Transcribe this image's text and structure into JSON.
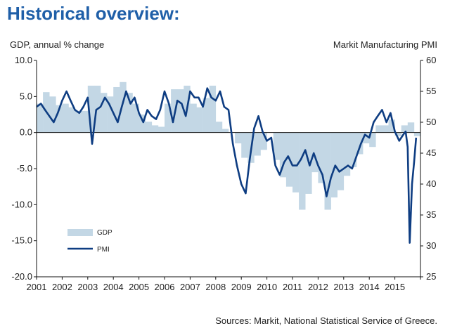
{
  "title": "Historical overview:",
  "source": "Sources: Markit, National Statistical Service of Greece.",
  "chart_data": {
    "type": "area+line",
    "ylabel_left": "GDP, annual % change",
    "ylabel_right": "Markit Manufacturing PMI",
    "ylim_left": [
      -20,
      10
    ],
    "ylim_right": [
      25,
      60
    ],
    "yticks_left": [
      "10.0",
      "5.0",
      "0.0",
      "-5.0",
      "-10.0",
      "-15.0",
      "-20.0"
    ],
    "yticks_right": [
      "60",
      "55",
      "50",
      "45",
      "40",
      "35",
      "30",
      "25"
    ],
    "xlim": [
      2001,
      2016
    ],
    "xticks": [
      "2001",
      "2002",
      "2003",
      "2004",
      "2005",
      "2006",
      "2007",
      "2008",
      "2009",
      "2010",
      "2011",
      "2012",
      "2013",
      "2014",
      "2015"
    ],
    "legend": {
      "position": "lower-left",
      "entries": [
        "GDP",
        "PMI"
      ]
    },
    "colors": {
      "gdp": "#c3d7e5",
      "pmi": "#0e3d82",
      "title": "#1f5fa8"
    },
    "series": [
      {
        "name": "GDP",
        "type": "area",
        "axis": "left",
        "x": [
          2001.0,
          2001.25,
          2001.5,
          2001.75,
          2002.0,
          2002.25,
          2002.5,
          2002.75,
          2003.0,
          2003.25,
          2003.5,
          2003.75,
          2004.0,
          2004.25,
          2004.5,
          2004.75,
          2005.0,
          2005.25,
          2005.5,
          2005.75,
          2006.0,
          2006.25,
          2006.5,
          2006.75,
          2007.0,
          2007.25,
          2007.5,
          2007.75,
          2008.0,
          2008.25,
          2008.5,
          2008.75,
          2009.0,
          2009.25,
          2009.5,
          2009.75,
          2010.0,
          2010.25,
          2010.5,
          2010.75,
          2011.0,
          2011.25,
          2011.5,
          2011.75,
          2012.0,
          2012.25,
          2012.5,
          2012.75,
          2013.0,
          2013.25,
          2013.5,
          2013.75,
          2014.0,
          2014.25,
          2014.5,
          2014.75,
          2015.0,
          2015.25,
          2015.5,
          2015.75
        ],
        "values": [
          4.0,
          5.6,
          5.0,
          3.8,
          4.0,
          3.5,
          3.0,
          3.0,
          6.5,
          6.5,
          5.5,
          5.0,
          6.3,
          7.0,
          5.5,
          4.0,
          2.5,
          1.5,
          1.0,
          0.8,
          4.0,
          6.0,
          6.0,
          6.5,
          4.0,
          3.5,
          4.8,
          6.5,
          1.5,
          0.5,
          0.0,
          -1.5,
          -3.5,
          -4.2,
          -3.2,
          -2.4,
          0.0,
          -3.8,
          -6.2,
          -7.5,
          -8.3,
          -10.7,
          -8.5,
          -5.5,
          -7.0,
          -10.7,
          -9.0,
          -8.0,
          -6.0,
          -4.8,
          -3.0,
          -1.5,
          -2.0,
          1.0,
          1.0,
          1.8,
          -0.5,
          1.0,
          1.4,
          -0.5
        ]
      },
      {
        "name": "PMI",
        "type": "line",
        "axis": "right",
        "x": [
          2001.0,
          2001.17,
          2001.33,
          2001.5,
          2001.67,
          2001.83,
          2002.0,
          2002.17,
          2002.33,
          2002.5,
          2002.67,
          2002.83,
          2003.0,
          2003.17,
          2003.33,
          2003.5,
          2003.67,
          2003.83,
          2004.0,
          2004.17,
          2004.33,
          2004.5,
          2004.67,
          2004.83,
          2005.0,
          2005.17,
          2005.33,
          2005.5,
          2005.67,
          2005.83,
          2006.0,
          2006.17,
          2006.33,
          2006.5,
          2006.67,
          2006.83,
          2007.0,
          2007.17,
          2007.33,
          2007.5,
          2007.67,
          2007.83,
          2008.0,
          2008.17,
          2008.33,
          2008.5,
          2008.67,
          2008.83,
          2009.0,
          2009.17,
          2009.33,
          2009.5,
          2009.67,
          2009.83,
          2010.0,
          2010.17,
          2010.33,
          2010.5,
          2010.67,
          2010.83,
          2011.0,
          2011.17,
          2011.33,
          2011.5,
          2011.67,
          2011.83,
          2012.0,
          2012.17,
          2012.33,
          2012.5,
          2012.67,
          2012.83,
          2013.0,
          2013.17,
          2013.33,
          2013.5,
          2013.67,
          2013.83,
          2014.0,
          2014.17,
          2014.33,
          2014.5,
          2014.67,
          2014.83,
          2015.0,
          2015.17,
          2015.33,
          2015.42,
          2015.5,
          2015.58,
          2015.67,
          2015.75,
          2015.83
        ],
        "values": [
          52.5,
          53.0,
          52.0,
          51.0,
          50.0,
          51.5,
          53.5,
          55.0,
          53.5,
          52.0,
          51.5,
          52.5,
          54.0,
          46.5,
          52.0,
          52.5,
          54.0,
          53.0,
          51.5,
          50.0,
          52.5,
          55.0,
          53.0,
          54.0,
          51.5,
          50.0,
          52.0,
          51.0,
          50.5,
          52.0,
          55.0,
          53.0,
          50.0,
          53.5,
          53.0,
          51.0,
          55.0,
          54.0,
          54.0,
          52.5,
          55.5,
          54.0,
          53.5,
          55.0,
          52.5,
          52.0,
          46.5,
          43.0,
          40.0,
          38.5,
          44.0,
          49.0,
          51.0,
          48.5,
          47.0,
          47.5,
          43.0,
          41.5,
          43.5,
          44.5,
          43.0,
          43.0,
          44.0,
          45.5,
          43.0,
          45.0,
          43.0,
          41.5,
          38.0,
          41.0,
          43.0,
          42.0,
          42.5,
          43.0,
          42.5,
          44.5,
          46.5,
          48.0,
          47.5,
          50.0,
          51.0,
          52.0,
          50.0,
          51.5,
          48.5,
          47.0,
          48.0,
          48.5,
          46.0,
          30.5,
          40.0,
          43.5,
          47.5
        ]
      }
    ]
  }
}
